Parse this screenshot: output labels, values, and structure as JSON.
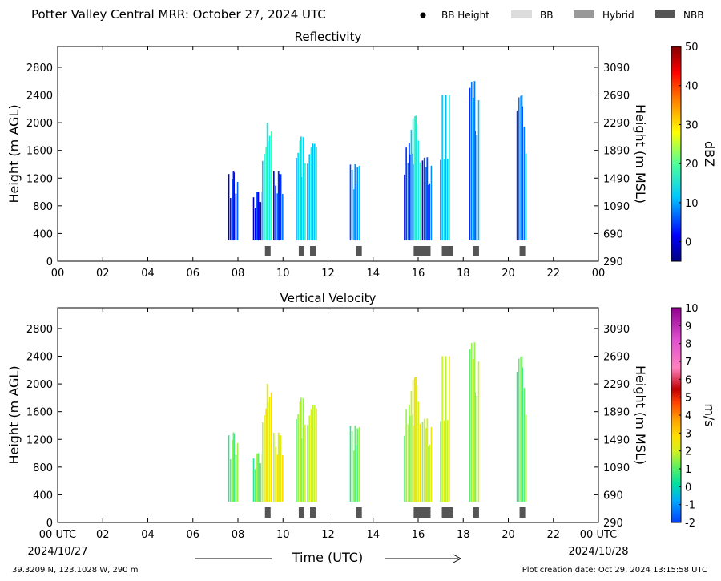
{
  "header": {
    "title": "Potter Valley Central MRR:  October 27, 2024 UTC",
    "legend": [
      {
        "label": "BB Height",
        "marker": "dot",
        "color": "#000000"
      },
      {
        "label": "BB",
        "marker": "swatch",
        "color": "#dcdcdc"
      },
      {
        "label": "Hybrid",
        "marker": "swatch",
        "color": "#999999"
      },
      {
        "label": "NBB",
        "marker": "swatch",
        "color": "#555555"
      }
    ]
  },
  "footer": {
    "location": "39.3209 N, 123.1028 W, 290 m",
    "creation": "Plot creation date: Oct 29, 2024 13:15:58 UTC",
    "xlabel": "Time (UTC)",
    "start_date": "2024/10/27",
    "end_date": "2024/10/28"
  },
  "chart_data": [
    {
      "type": "heatmap",
      "title": "Reflectivity",
      "ylabel": "Height (m AGL)",
      "ylabel_right": "Height (m MSL)",
      "xlim": [
        0,
        24
      ],
      "ylim": [
        0,
        3100
      ],
      "x_ticks": [
        "00",
        "02",
        "04",
        "06",
        "08",
        "10",
        "12",
        "14",
        "16",
        "18",
        "20",
        "22",
        "00"
      ],
      "y_ticks": [
        0,
        400,
        800,
        1200,
        1600,
        2000,
        2400,
        2800
      ],
      "y_ticks_right": [
        "290",
        "690",
        "1090",
        "1490",
        "1890",
        "2290",
        "2690",
        "3090"
      ],
      "colorbar": {
        "label": "dBZ",
        "range": [
          -5,
          50
        ],
        "ticks": [
          0,
          10,
          20,
          30,
          40,
          50
        ]
      },
      "cells": [
        {
          "x": 7.8,
          "top": 1300,
          "value": 1
        },
        {
          "x": 8.9,
          "top": 1000,
          "value": 0
        },
        {
          "x": 9.3,
          "top": 2000,
          "value": 12
        },
        {
          "x": 9.8,
          "top": 1300,
          "value": 2
        },
        {
          "x": 10.8,
          "top": 1800,
          "value": 10
        },
        {
          "x": 11.3,
          "top": 1700,
          "value": 9
        },
        {
          "x": 13.2,
          "top": 1400,
          "value": 6
        },
        {
          "x": 15.6,
          "top": 1700,
          "value": 2
        },
        {
          "x": 15.9,
          "top": 2100,
          "value": 12
        },
        {
          "x": 16.4,
          "top": 1500,
          "value": 3
        },
        {
          "x": 17.2,
          "top": 2400,
          "value": 9
        },
        {
          "x": 18.5,
          "top": 2600,
          "value": 5
        },
        {
          "x": 20.6,
          "top": 2400,
          "value": 5
        }
      ],
      "nbb": [
        {
          "start": 9.2,
          "end": 9.45
        },
        {
          "start": 10.7,
          "end": 10.95
        },
        {
          "start": 11.2,
          "end": 11.45
        },
        {
          "start": 13.25,
          "end": 13.5
        },
        {
          "start": 15.8,
          "end": 16.55
        },
        {
          "start": 17.05,
          "end": 17.55
        },
        {
          "start": 18.45,
          "end": 18.7
        },
        {
          "start": 20.5,
          "end": 20.75
        }
      ]
    },
    {
      "type": "heatmap",
      "title": "Vertical Velocity",
      "ylabel": "Height (m AGL)",
      "ylabel_right": "Height (m MSL)",
      "xlim": [
        0,
        24
      ],
      "ylim": [
        0,
        3100
      ],
      "x_ticks": [
        "00 UTC",
        "02",
        "04",
        "06",
        "08",
        "10",
        "12",
        "14",
        "16",
        "18",
        "20",
        "22",
        "00 UTC"
      ],
      "y_ticks": [
        0,
        400,
        800,
        1200,
        1600,
        2000,
        2400,
        2800
      ],
      "y_ticks_right": [
        "290",
        "690",
        "1090",
        "1490",
        "1890",
        "2290",
        "2690",
        "3090"
      ],
      "colorbar": {
        "label": "m/s",
        "range": [
          -2,
          10
        ],
        "ticks": [
          -2,
          -1,
          0,
          1,
          2,
          3,
          4,
          5,
          6,
          7,
          8,
          9,
          10
        ]
      },
      "cells": [
        {
          "x": 7.8,
          "top": 1300,
          "value": 1
        },
        {
          "x": 8.9,
          "top": 1000,
          "value": 1
        },
        {
          "x": 9.3,
          "top": 2000,
          "value": 2.5
        },
        {
          "x": 9.8,
          "top": 1300,
          "value": 2.5
        },
        {
          "x": 10.8,
          "top": 1800,
          "value": 1.5
        },
        {
          "x": 11.3,
          "top": 1700,
          "value": 2
        },
        {
          "x": 13.2,
          "top": 1400,
          "value": 1
        },
        {
          "x": 15.6,
          "top": 1700,
          "value": 1.5
        },
        {
          "x": 15.9,
          "top": 2100,
          "value": 2.5
        },
        {
          "x": 16.4,
          "top": 1500,
          "value": 2
        },
        {
          "x": 17.2,
          "top": 2400,
          "value": 2
        },
        {
          "x": 18.5,
          "top": 2600,
          "value": 1.5
        },
        {
          "x": 20.6,
          "top": 2400,
          "value": 1
        }
      ],
      "nbb": [
        {
          "start": 9.2,
          "end": 9.45
        },
        {
          "start": 10.7,
          "end": 10.95
        },
        {
          "start": 11.2,
          "end": 11.45
        },
        {
          "start": 13.25,
          "end": 13.5
        },
        {
          "start": 15.8,
          "end": 16.55
        },
        {
          "start": 17.05,
          "end": 17.55
        },
        {
          "start": 18.45,
          "end": 18.7
        },
        {
          "start": 20.5,
          "end": 20.75
        }
      ]
    }
  ]
}
